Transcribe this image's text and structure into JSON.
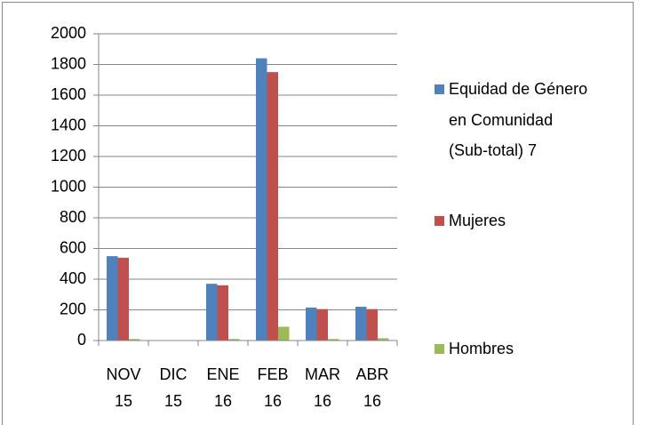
{
  "chart_data": {
    "type": "bar",
    "categories": [
      "NOV 15",
      "DIC 15",
      "ENE 16",
      "FEB 16",
      "MAR 16",
      "ABR 16"
    ],
    "series": [
      {
        "name": "Equidad de Género en Comunidad (Sub-total) 7",
        "color": "#4f81bd",
        "values": [
          550,
          0,
          370,
          1840,
          215,
          220
        ]
      },
      {
        "name": "Mujeres",
        "color": "#c0504d",
        "values": [
          540,
          0,
          360,
          1750,
          205,
          205
        ]
      },
      {
        "name": "Hombres",
        "color": "#9bbb59",
        "values": [
          10,
          0,
          10,
          90,
          10,
          15
        ]
      }
    ],
    "ylim": [
      0,
      2000
    ],
    "yticks": [
      0,
      200,
      400,
      600,
      800,
      1000,
      1200,
      1400,
      1600,
      1800,
      2000
    ],
    "grid": true,
    "legend": "right"
  }
}
